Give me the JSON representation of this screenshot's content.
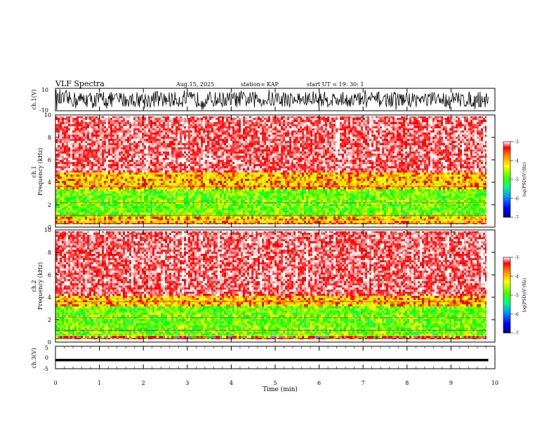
{
  "header": {
    "title": "VLF  Spectra",
    "date": "Aug.15,  2025",
    "station": "station= KAP",
    "start": "start  UT  =    19: 30: 1"
  },
  "chart_data": [
    {
      "type": "line",
      "id": "ch1-waveform",
      "ylabel": "ch.1(V)",
      "ylim": [
        -10,
        10
      ],
      "ytick_labels": [
        "-10",
        "10"
      ],
      "signal": "dense noise spanning roughly -10 to 10 V over 0 to 9.85 min"
    },
    {
      "type": "heatmap",
      "id": "ch1-spectrogram",
      "ylabel": "ch.1\nFrequency  (kHz)",
      "ylim": [
        0,
        10
      ],
      "ytick_labels": [
        "0",
        "2",
        "4",
        "6",
        "8",
        "10"
      ],
      "xlim": [
        0,
        9.85
      ],
      "color_bands": [
        {
          "from_khz": 0,
          "to_khz": 0.5,
          "level": "mixed red/yellow/blue lines"
        },
        {
          "from_khz": 0.5,
          "to_khz": 1.0,
          "level": "yellow/red"
        },
        {
          "from_khz": 1.0,
          "to_khz": 3.4,
          "level": "green/yellow"
        },
        {
          "from_khz": 3.4,
          "to_khz": 5.0,
          "level": "yellow/orange"
        },
        {
          "from_khz": 5.0,
          "to_khz": 10.0,
          "level": "red/white speckle"
        }
      ],
      "colorbar": {
        "label": "log(PSD)(V²/Hz)",
        "range": [
          -7,
          -3
        ],
        "ticks": [
          "-3",
          "-4",
          "-5",
          "-6",
          "-7"
        ]
      }
    },
    {
      "type": "heatmap",
      "id": "ch2-spectrogram",
      "ylabel": "ch.2\nFrequency  (kHz)",
      "ylim": [
        0,
        10
      ],
      "ytick_labels": [
        "0",
        "2",
        "4",
        "6",
        "8",
        "10"
      ],
      "xlim": [
        0,
        9.85
      ],
      "color_bands": [
        {
          "from_khz": 0,
          "to_khz": 0.6,
          "level": "mixed red/yellow lines"
        },
        {
          "from_khz": 0.6,
          "to_khz": 3.2,
          "level": "green/yellow"
        },
        {
          "from_khz": 3.2,
          "to_khz": 4.2,
          "level": "yellow/orange"
        },
        {
          "from_khz": 4.2,
          "to_khz": 10.0,
          "level": "red/white speckle"
        }
      ],
      "colorbar": {
        "label": "log(PSD)(V²/Hz)",
        "range": [
          -7,
          -3
        ],
        "ticks": [
          "-3",
          "-4",
          "-5",
          "-6",
          "-7"
        ]
      }
    },
    {
      "type": "line",
      "id": "ch3-waveform",
      "ylabel": "ch.3(V)",
      "ylim": [
        -5,
        5
      ],
      "ytick_labels": [
        "-5",
        "0",
        "5"
      ],
      "signal": "narrow band near -1 V over 0 to 9.85 min"
    }
  ],
  "xaxis": {
    "label": "Time  (min)",
    "range": [
      0,
      10
    ],
    "ticks": [
      "0",
      "1",
      "2",
      "3",
      "4",
      "5",
      "6",
      "7",
      "8",
      "9",
      "10"
    ]
  },
  "colors": {
    "ink": "#000000",
    "red": "#ff0000",
    "orange": "#ff8000",
    "yellow": "#ffff00",
    "green": "#00ff00",
    "blue": "#0000ff"
  }
}
